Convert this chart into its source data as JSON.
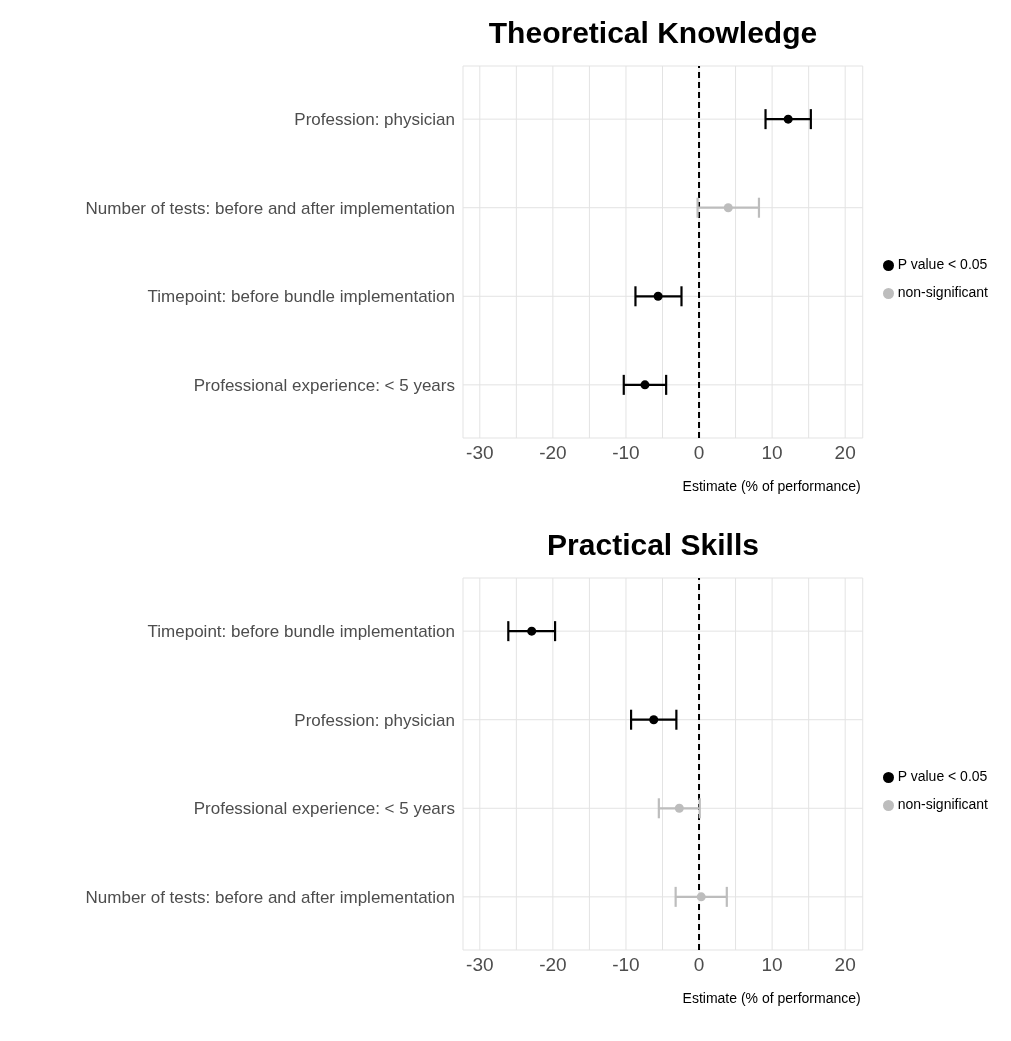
{
  "chart_data": [
    {
      "type": "scatter",
      "title": "Theoretical Knowledge",
      "xlabel": "Estimate (% of performance)",
      "orientation": "horizontal",
      "categories": [
        "Profession: physician",
        "Number of tests: before and after implementation",
        "Timepoint: before bundle implementation",
        "Professional experience: < 5 years"
      ],
      "series": [
        {
          "name": "non-significant",
          "color": "#bdbdbd",
          "values": [
            null,
            4.0,
            null,
            null
          ],
          "errors": [
            null,
            [
              -0.2,
              8.2
            ],
            null,
            null
          ]
        },
        {
          "name": "P value < 0.05",
          "color": "#000000",
          "values": [
            12.2,
            null,
            -5.6,
            -7.4
          ],
          "errors": [
            [
              9.1,
              15.3
            ],
            null,
            [
              -8.7,
              -2.4
            ],
            [
              -10.3,
              -4.5
            ]
          ]
        }
      ],
      "xlim": [
        -32.3,
        22.4
      ],
      "xticks": [
        -30,
        {
          "value": -25,
          "label": null
        },
        -20,
        {
          "value": -15,
          "label": null
        },
        -10,
        {
          "value": -5,
          "label": null
        },
        0,
        {
          "value": 5,
          "label": null
        },
        10,
        {
          "value": 15,
          "label": null
        },
        20
      ],
      "grid": true,
      "legend": "right",
      "marker": "circle",
      "ref_lines": [
        {
          "axis": "x",
          "value": 0,
          "line_style": "dashed"
        }
      ]
    },
    {
      "type": "scatter",
      "title": "Practical Skills",
      "xlabel": "Estimate (% of performance)",
      "orientation": "horizontal",
      "categories": [
        "Timepoint: before bundle implementation",
        "Profession: physician",
        "Professional experience: < 5 years",
        "Number of tests: before and after implementation"
      ],
      "series": [
        {
          "name": "non-significant",
          "color": "#bdbdbd",
          "values": [
            null,
            null,
            -2.7,
            0.3
          ],
          "errors": [
            null,
            null,
            [
              -5.5,
              0.1
            ],
            [
              -3.2,
              3.8
            ]
          ]
        },
        {
          "name": "P value < 0.05",
          "color": "#000000",
          "values": [
            -22.9,
            -6.2,
            null,
            null
          ],
          "errors": [
            [
              -26.1,
              -19.7
            ],
            [
              -9.3,
              -3.1
            ],
            null,
            null
          ]
        }
      ],
      "xlim": [
        -32.3,
        22.4
      ],
      "xticks": [
        -30,
        {
          "value": -25,
          "label": null
        },
        -20,
        {
          "value": -15,
          "label": null
        },
        -10,
        {
          "value": -5,
          "label": null
        },
        0,
        {
          "value": 5,
          "label": null
        },
        10,
        {
          "value": 15,
          "label": null
        },
        20
      ],
      "grid": true,
      "legend": "right",
      "marker": "circle",
      "ref_lines": [
        {
          "axis": "x",
          "value": 0,
          "line_style": "dashed"
        }
      ]
    }
  ]
}
